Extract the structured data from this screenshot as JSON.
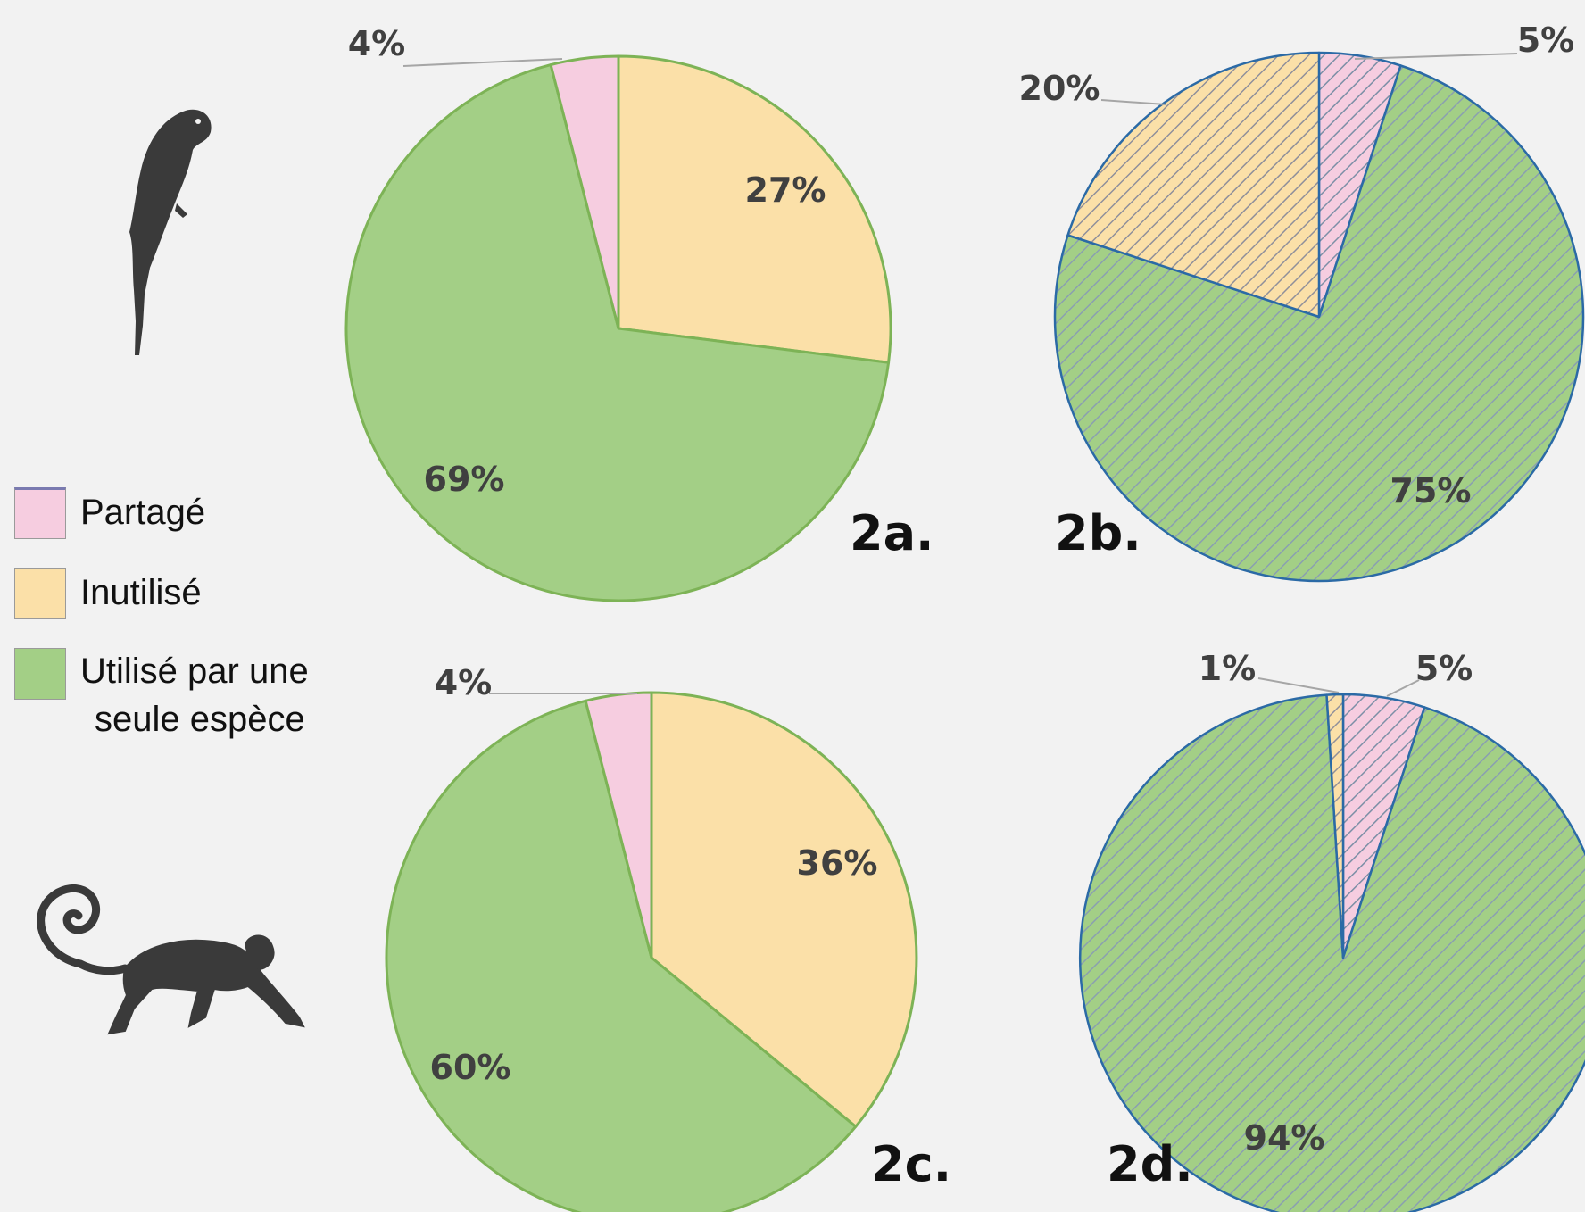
{
  "legend": {
    "items": [
      {
        "label": "Partagé",
        "color": "#f6cde0"
      },
      {
        "label": "Inutilisé",
        "color": "#fbe0a8"
      },
      {
        "label_line1": "Utilisé par une",
        "label_line2": "seule espèce",
        "color": "#a3cf86"
      }
    ]
  },
  "icons": [
    "parrot-silhouette-icon",
    "monkey-silhouette-icon"
  ],
  "chart_data": [
    {
      "type": "pie",
      "panel": "2a.",
      "categories": [
        "Partagé",
        "Inutilisé",
        "Utilisé par une seule espèce"
      ],
      "values": [
        4,
        27,
        69
      ],
      "labels": [
        "4%",
        "27%",
        "69%"
      ],
      "style": "solid"
    },
    {
      "type": "pie",
      "panel": "2b.",
      "categories": [
        "Partagé",
        "Inutilisé",
        "Utilisé par une seule espèce"
      ],
      "values": [
        5,
        20,
        75
      ],
      "labels": [
        "5%",
        "20%",
        "75%"
      ],
      "style": "hatched"
    },
    {
      "type": "pie",
      "panel": "2c.",
      "categories": [
        "Partagé",
        "Inutilisé",
        "Utilisé par une seule espèce"
      ],
      "values": [
        4,
        36,
        60
      ],
      "labels": [
        "4%",
        "36%",
        "60%"
      ],
      "style": "solid"
    },
    {
      "type": "pie",
      "panel": "2d.",
      "categories": [
        "Partagé",
        "Inutilisé",
        "Utilisé par une seule espèce"
      ],
      "values": [
        5,
        1,
        94
      ],
      "labels": [
        "5%",
        "1%",
        "94%"
      ],
      "style": "hatched"
    }
  ]
}
